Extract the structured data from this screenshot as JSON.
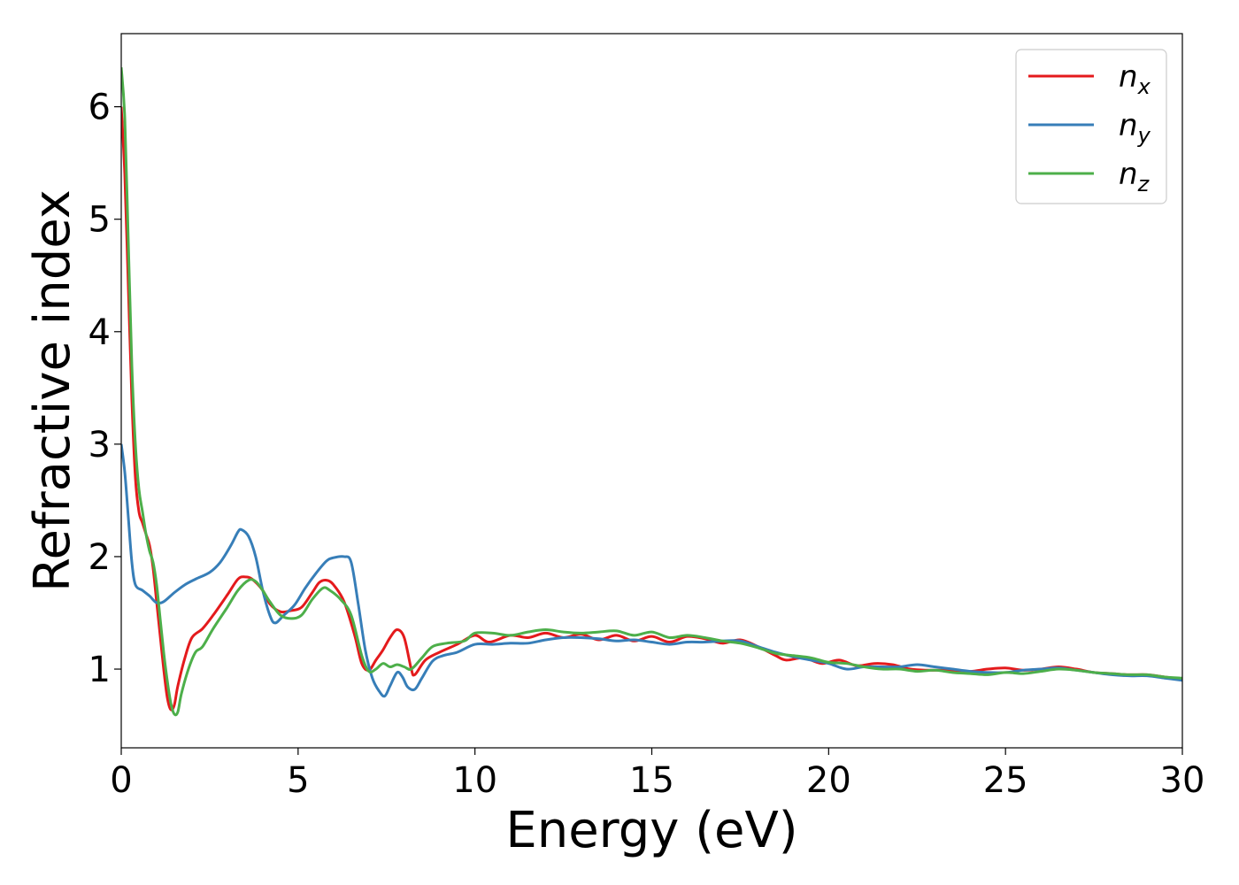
{
  "chart_data": {
    "type": "line",
    "xlabel": "Energy (eV)",
    "ylabel": "Refractive index",
    "xlim": [
      0,
      30
    ],
    "ylim": [
      0.3,
      6.65
    ],
    "xticks": [
      0,
      5,
      10,
      15,
      20,
      25,
      30
    ],
    "yticks": [
      1,
      2,
      3,
      4,
      5,
      6
    ],
    "grid": false,
    "legend_position": "top-right",
    "series": [
      {
        "name": "n",
        "subscript": "x",
        "color": "#e41a1c",
        "points": [
          [
            0,
            6.0
          ],
          [
            0.1,
            5.4
          ],
          [
            0.2,
            4.4
          ],
          [
            0.3,
            3.4
          ],
          [
            0.4,
            2.7
          ],
          [
            0.5,
            2.4
          ],
          [
            0.6,
            2.3
          ],
          [
            0.7,
            2.2
          ],
          [
            0.8,
            2.1
          ],
          [
            0.9,
            1.9
          ],
          [
            1.0,
            1.6
          ],
          [
            1.1,
            1.3
          ],
          [
            1.2,
            1.0
          ],
          [
            1.3,
            0.75
          ],
          [
            1.4,
            0.64
          ],
          [
            1.5,
            0.68
          ],
          [
            1.6,
            0.85
          ],
          [
            1.8,
            1.1
          ],
          [
            2.0,
            1.28
          ],
          [
            2.3,
            1.36
          ],
          [
            2.6,
            1.48
          ],
          [
            3.0,
            1.66
          ],
          [
            3.3,
            1.8
          ],
          [
            3.5,
            1.82
          ],
          [
            3.7,
            1.8
          ],
          [
            4.0,
            1.7
          ],
          [
            4.2,
            1.58
          ],
          [
            4.5,
            1.51
          ],
          [
            4.8,
            1.52
          ],
          [
            5.1,
            1.55
          ],
          [
            5.4,
            1.68
          ],
          [
            5.6,
            1.77
          ],
          [
            5.8,
            1.79
          ],
          [
            6.0,
            1.75
          ],
          [
            6.3,
            1.6
          ],
          [
            6.6,
            1.3
          ],
          [
            6.8,
            1.05
          ],
          [
            7.0,
            0.99
          ],
          [
            7.2,
            1.08
          ],
          [
            7.4,
            1.17
          ],
          [
            7.6,
            1.28
          ],
          [
            7.8,
            1.35
          ],
          [
            8.0,
            1.28
          ],
          [
            8.2,
            1.0
          ],
          [
            8.3,
            0.95
          ],
          [
            8.6,
            1.08
          ],
          [
            9.0,
            1.15
          ],
          [
            9.5,
            1.22
          ],
          [
            10.0,
            1.3
          ],
          [
            10.4,
            1.24
          ],
          [
            11.0,
            1.3
          ],
          [
            11.5,
            1.28
          ],
          [
            12.0,
            1.32
          ],
          [
            12.5,
            1.28
          ],
          [
            13.0,
            1.31
          ],
          [
            13.5,
            1.26
          ],
          [
            14.0,
            1.3
          ],
          [
            14.5,
            1.25
          ],
          [
            15.0,
            1.29
          ],
          [
            15.5,
            1.24
          ],
          [
            16.0,
            1.29
          ],
          [
            16.5,
            1.27
          ],
          [
            17.0,
            1.23
          ],
          [
            17.5,
            1.26
          ],
          [
            18.0,
            1.2
          ],
          [
            18.5,
            1.12
          ],
          [
            18.8,
            1.08
          ],
          [
            19.3,
            1.1
          ],
          [
            19.8,
            1.05
          ],
          [
            20.3,
            1.08
          ],
          [
            20.8,
            1.03
          ],
          [
            21.3,
            1.05
          ],
          [
            21.8,
            1.04
          ],
          [
            22.3,
            1.0
          ],
          [
            22.8,
            0.99
          ],
          [
            23.5,
            0.99
          ],
          [
            24.0,
            0.98
          ],
          [
            24.5,
            1.0
          ],
          [
            25.0,
            1.01
          ],
          [
            25.5,
            0.99
          ],
          [
            26.0,
            1.0
          ],
          [
            26.5,
            1.02
          ],
          [
            27.0,
            1.0
          ],
          [
            27.5,
            0.97
          ],
          [
            28.0,
            0.96
          ],
          [
            28.5,
            0.95
          ],
          [
            29.0,
            0.95
          ],
          [
            29.5,
            0.93
          ],
          [
            30.0,
            0.91
          ]
        ]
      },
      {
        "name": "n",
        "subscript": "y",
        "color": "#377eb8",
        "points": [
          [
            0,
            3.0
          ],
          [
            0.1,
            2.75
          ],
          [
            0.2,
            2.35
          ],
          [
            0.3,
            1.95
          ],
          [
            0.4,
            1.75
          ],
          [
            0.6,
            1.7
          ],
          [
            0.8,
            1.65
          ],
          [
            1.0,
            1.59
          ],
          [
            1.2,
            1.6
          ],
          [
            1.5,
            1.68
          ],
          [
            1.8,
            1.75
          ],
          [
            2.1,
            1.8
          ],
          [
            2.5,
            1.86
          ],
          [
            2.8,
            1.95
          ],
          [
            3.1,
            2.1
          ],
          [
            3.3,
            2.22
          ],
          [
            3.4,
            2.24
          ],
          [
            3.6,
            2.18
          ],
          [
            3.8,
            2.0
          ],
          [
            4.0,
            1.7
          ],
          [
            4.2,
            1.48
          ],
          [
            4.35,
            1.41
          ],
          [
            4.6,
            1.48
          ],
          [
            4.9,
            1.57
          ],
          [
            5.2,
            1.72
          ],
          [
            5.5,
            1.85
          ],
          [
            5.8,
            1.96
          ],
          [
            6.0,
            1.99
          ],
          [
            6.3,
            2.0
          ],
          [
            6.5,
            1.95
          ],
          [
            6.7,
            1.58
          ],
          [
            6.9,
            1.17
          ],
          [
            7.1,
            0.92
          ],
          [
            7.3,
            0.8
          ],
          [
            7.45,
            0.76
          ],
          [
            7.6,
            0.85
          ],
          [
            7.8,
            0.97
          ],
          [
            7.95,
            0.93
          ],
          [
            8.1,
            0.84
          ],
          [
            8.3,
            0.82
          ],
          [
            8.5,
            0.92
          ],
          [
            8.8,
            1.07
          ],
          [
            9.1,
            1.12
          ],
          [
            9.5,
            1.15
          ],
          [
            10.0,
            1.22
          ],
          [
            10.5,
            1.22
          ],
          [
            11.0,
            1.23
          ],
          [
            11.5,
            1.23
          ],
          [
            12.0,
            1.26
          ],
          [
            12.5,
            1.28
          ],
          [
            13.0,
            1.28
          ],
          [
            13.5,
            1.27
          ],
          [
            14.0,
            1.25
          ],
          [
            14.5,
            1.26
          ],
          [
            15.0,
            1.24
          ],
          [
            15.5,
            1.22
          ],
          [
            16.0,
            1.24
          ],
          [
            16.5,
            1.24
          ],
          [
            17.0,
            1.25
          ],
          [
            17.5,
            1.25
          ],
          [
            18.0,
            1.2
          ],
          [
            18.5,
            1.15
          ],
          [
            19.0,
            1.11
          ],
          [
            19.5,
            1.08
          ],
          [
            20.0,
            1.05
          ],
          [
            20.5,
            1.0
          ],
          [
            21.0,
            1.02
          ],
          [
            21.5,
            1.02
          ],
          [
            22.0,
            1.02
          ],
          [
            22.5,
            1.04
          ],
          [
            23.0,
            1.02
          ],
          [
            23.5,
            1.0
          ],
          [
            24.0,
            0.98
          ],
          [
            24.5,
            0.97
          ],
          [
            25.0,
            0.97
          ],
          [
            25.5,
            0.99
          ],
          [
            26.0,
            1.0
          ],
          [
            26.5,
            1.01
          ],
          [
            27.0,
            0.99
          ],
          [
            27.5,
            0.97
          ],
          [
            28.0,
            0.95
          ],
          [
            28.5,
            0.94
          ],
          [
            29.0,
            0.94
          ],
          [
            29.5,
            0.92
          ],
          [
            30.0,
            0.9
          ]
        ]
      },
      {
        "name": "n",
        "subscript": "z",
        "color": "#4daf4a",
        "points": [
          [
            0,
            6.35
          ],
          [
            0.1,
            5.9
          ],
          [
            0.2,
            4.8
          ],
          [
            0.3,
            3.7
          ],
          [
            0.4,
            3.0
          ],
          [
            0.5,
            2.6
          ],
          [
            0.6,
            2.4
          ],
          [
            0.7,
            2.2
          ],
          [
            0.8,
            2.05
          ],
          [
            0.9,
            1.95
          ],
          [
            1.0,
            1.75
          ],
          [
            1.1,
            1.45
          ],
          [
            1.2,
            1.15
          ],
          [
            1.3,
            0.9
          ],
          [
            1.4,
            0.7
          ],
          [
            1.5,
            0.6
          ],
          [
            1.6,
            0.62
          ],
          [
            1.7,
            0.78
          ],
          [
            1.9,
            1.0
          ],
          [
            2.1,
            1.15
          ],
          [
            2.3,
            1.2
          ],
          [
            2.6,
            1.36
          ],
          [
            3.0,
            1.55
          ],
          [
            3.3,
            1.7
          ],
          [
            3.6,
            1.79
          ],
          [
            3.8,
            1.78
          ],
          [
            4.0,
            1.7
          ],
          [
            4.2,
            1.6
          ],
          [
            4.5,
            1.48
          ],
          [
            4.8,
            1.45
          ],
          [
            5.1,
            1.48
          ],
          [
            5.4,
            1.62
          ],
          [
            5.7,
            1.72
          ],
          [
            5.9,
            1.7
          ],
          [
            6.2,
            1.62
          ],
          [
            6.5,
            1.48
          ],
          [
            6.8,
            1.12
          ],
          [
            7.0,
            0.98
          ],
          [
            7.2,
            1.0
          ],
          [
            7.4,
            1.05
          ],
          [
            7.6,
            1.02
          ],
          [
            7.8,
            1.04
          ],
          [
            8.0,
            1.02
          ],
          [
            8.2,
            1.0
          ],
          [
            8.5,
            1.1
          ],
          [
            8.8,
            1.2
          ],
          [
            9.2,
            1.23
          ],
          [
            9.7,
            1.25
          ],
          [
            10.0,
            1.32
          ],
          [
            10.5,
            1.32
          ],
          [
            11.0,
            1.3
          ],
          [
            11.5,
            1.33
          ],
          [
            12.0,
            1.35
          ],
          [
            12.5,
            1.33
          ],
          [
            13.0,
            1.32
          ],
          [
            13.5,
            1.33
          ],
          [
            14.0,
            1.34
          ],
          [
            14.5,
            1.3
          ],
          [
            15.0,
            1.33
          ],
          [
            15.5,
            1.28
          ],
          [
            16.0,
            1.3
          ],
          [
            16.5,
            1.28
          ],
          [
            17.0,
            1.25
          ],
          [
            17.5,
            1.23
          ],
          [
            18.0,
            1.19
          ],
          [
            18.5,
            1.14
          ],
          [
            19.0,
            1.12
          ],
          [
            19.5,
            1.1
          ],
          [
            20.0,
            1.06
          ],
          [
            20.5,
            1.05
          ],
          [
            21.0,
            1.02
          ],
          [
            21.5,
            1.0
          ],
          [
            22.0,
            1.0
          ],
          [
            22.5,
            0.98
          ],
          [
            23.0,
            0.99
          ],
          [
            23.5,
            0.97
          ],
          [
            24.0,
            0.96
          ],
          [
            24.5,
            0.95
          ],
          [
            25.0,
            0.97
          ],
          [
            25.5,
            0.96
          ],
          [
            26.0,
            0.98
          ],
          [
            26.5,
            1.0
          ],
          [
            27.0,
            0.99
          ],
          [
            27.5,
            0.97
          ],
          [
            28.0,
            0.96
          ],
          [
            28.5,
            0.95
          ],
          [
            29.0,
            0.95
          ],
          [
            29.5,
            0.93
          ],
          [
            30.0,
            0.92
          ]
        ]
      }
    ]
  }
}
